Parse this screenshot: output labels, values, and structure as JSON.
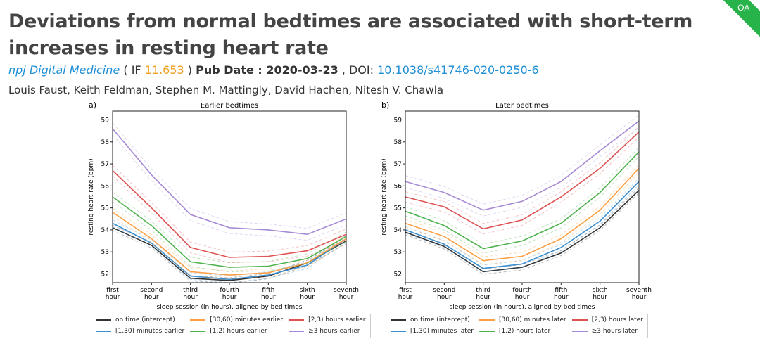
{
  "header": {
    "title": "Deviations from normal bedtimes are associated with short-term increases in resting heart rate",
    "journal": "npj Digital Medicine",
    "if_prefix": " ( IF ",
    "impact_factor": "11.653",
    "if_suffix": " ) ",
    "pub_date_label": "Pub Date : 2020-03-23",
    "doi_prefix": " , DOI: ",
    "doi": "10.1038/s41746-020-0250-6",
    "authors": "Louis Faust, Keith Feldman, Stephen M. Mattingly, David Hachen, Nitesh V. Chawla",
    "badge": "OA"
  },
  "chart_data": [
    {
      "type": "line",
      "panel_label": "a)",
      "title": "Earlier bedtimes",
      "xlabel": "sleep session (in hours), aligned by bed times",
      "ylabel": "resting heart rate (bpm)",
      "categories": [
        "first\nhour",
        "second\nhour",
        "third\nhour",
        "fourth\nhour",
        "fifth\nhour",
        "sixth\nhour",
        "seventh\nhour"
      ],
      "yticks": [
        52,
        53,
        54,
        55,
        56,
        57,
        58,
        59
      ],
      "ylim": [
        51.6,
        59.4
      ],
      "series": [
        {
          "name": "on time (intercept)",
          "color": "#333333",
          "values": [
            54.1,
            53.3,
            51.8,
            51.7,
            51.9,
            52.5,
            53.5
          ]
        },
        {
          "name": "[1,30) minutes earlier",
          "color": "#3b8fd0",
          "values": [
            54.3,
            53.4,
            51.9,
            51.75,
            51.95,
            52.4,
            53.6
          ]
        },
        {
          "name": "[30,60) minutes earlier",
          "color": "#ff9f43",
          "values": [
            54.8,
            53.6,
            52.1,
            51.95,
            52.05,
            52.5,
            53.6
          ]
        },
        {
          "name": "[1,2) hours earlier",
          "color": "#4db34d",
          "values": [
            55.5,
            54.2,
            52.55,
            52.3,
            52.35,
            52.7,
            53.7
          ]
        },
        {
          "name": "[2,3) hours earlier",
          "color": "#e05252",
          "values": [
            56.7,
            55.0,
            53.2,
            52.75,
            52.8,
            53.05,
            53.8
          ]
        },
        {
          "name": "≥3 hours earlier",
          "color": "#a78ad6",
          "values": [
            58.6,
            56.5,
            54.7,
            54.1,
            54.0,
            53.8,
            54.5
          ]
        }
      ]
    },
    {
      "type": "line",
      "panel_label": "b)",
      "title": "Later bedtimes",
      "xlabel": "sleep session (in hours), aligned by bed times",
      "ylabel": "resting heart rate (bpm)",
      "categories": [
        "first\nhour",
        "second\nhour",
        "third\nhour",
        "fourth\nhour",
        "fifth\nhour",
        "sixth\nhour",
        "seventh\nhour"
      ],
      "yticks": [
        52,
        53,
        54,
        55,
        56,
        57,
        58,
        59
      ],
      "ylim": [
        51.6,
        59.4
      ],
      "series": [
        {
          "name": "on time (intercept)",
          "color": "#333333",
          "values": [
            53.9,
            53.25,
            52.1,
            52.3,
            52.95,
            54.1,
            55.8
          ]
        },
        {
          "name": "[1,30) minutes later",
          "color": "#3b8fd0",
          "values": [
            54.0,
            53.35,
            52.25,
            52.45,
            53.2,
            54.4,
            56.2
          ]
        },
        {
          "name": "[30,60) minutes later",
          "color": "#ff9f43",
          "values": [
            54.3,
            53.7,
            52.6,
            52.8,
            53.6,
            54.9,
            56.8
          ]
        },
        {
          "name": "[1,2) hours later",
          "color": "#4db34d",
          "values": [
            54.85,
            54.2,
            53.15,
            53.5,
            54.3,
            55.7,
            57.55
          ]
        },
        {
          "name": "[2,3) hours later",
          "color": "#e05252",
          "values": [
            55.5,
            55.05,
            54.05,
            54.45,
            55.5,
            56.8,
            58.45
          ]
        },
        {
          "name": "≥3 hours later",
          "color": "#a78ad6",
          "values": [
            56.2,
            55.7,
            54.9,
            55.3,
            56.2,
            57.6,
            58.95
          ]
        }
      ]
    }
  ]
}
